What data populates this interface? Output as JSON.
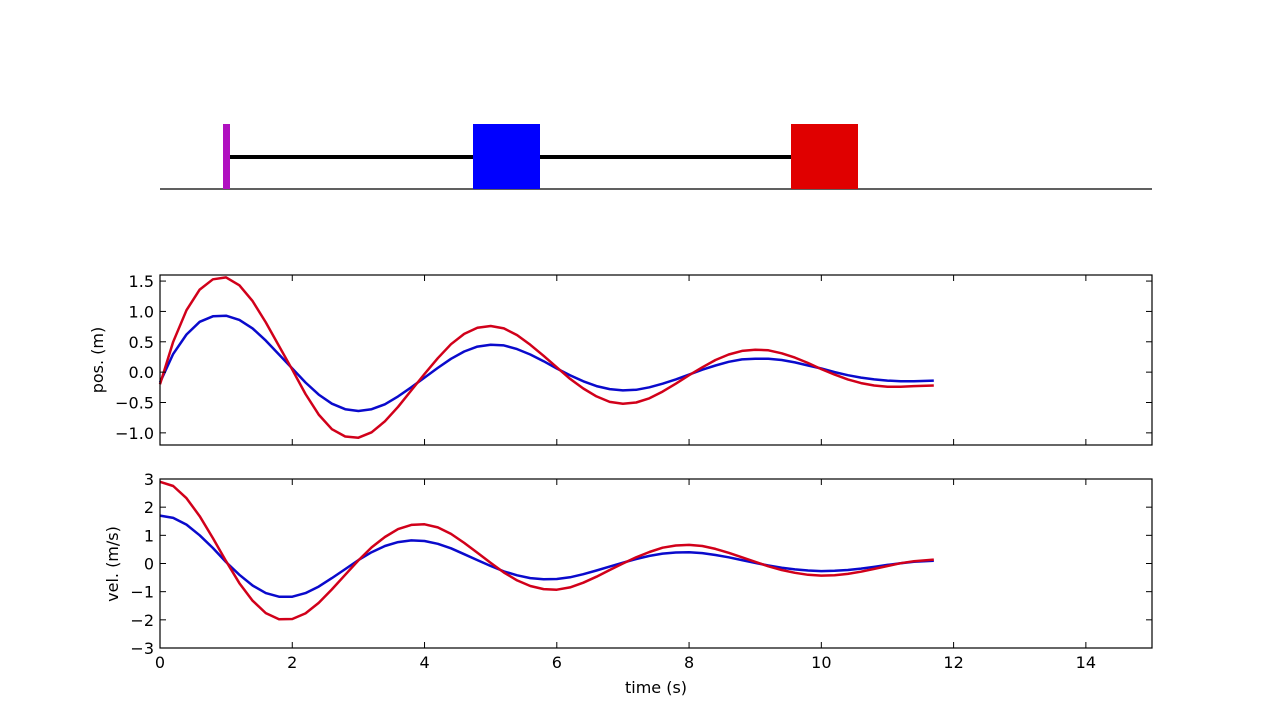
{
  "colors": {
    "wall": "#b010c0",
    "mass1": "#0000ff",
    "mass2": "#e00000",
    "spring": "#000000",
    "series_blue": "#0a0acc",
    "series_red": "#d1001a"
  },
  "chart_data": [
    {
      "type": "line",
      "title": "",
      "xlabel": "",
      "ylabel": "pos. (m)",
      "xlim": [
        0,
        15
      ],
      "ylim": [
        -1.2,
        1.6
      ],
      "xticks": [
        0,
        2,
        4,
        6,
        8,
        10,
        12,
        14
      ],
      "yticks": [
        -1.0,
        -0.5,
        0.0,
        0.5,
        1.0,
        1.5
      ],
      "ytick_labels": [
        "−1.0",
        "−0.5",
        "0.0",
        "0.5",
        "1.0",
        "1.5"
      ],
      "series": [
        {
          "color": "blue",
          "x": [
            0,
            0.2,
            0.4,
            0.6,
            0.8,
            1.0,
            1.2,
            1.4,
            1.6,
            1.8,
            2.0,
            2.2,
            2.4,
            2.6,
            2.8,
            3.0,
            3.2,
            3.4,
            3.6,
            3.8,
            4.0,
            4.2,
            4.4,
            4.6,
            4.8,
            5.0,
            5.2,
            5.4,
            5.6,
            5.8,
            6.0,
            6.2,
            6.4,
            6.6,
            6.8,
            7.0,
            7.2,
            7.4,
            7.6,
            7.8,
            8.0,
            8.2,
            8.4,
            8.6,
            8.8,
            9.0,
            9.2,
            9.4,
            9.6,
            9.8,
            10.0,
            10.2,
            10.4,
            10.6,
            10.8,
            11.0,
            11.2,
            11.4,
            11.7
          ],
          "y": [
            -0.17,
            0.3,
            0.62,
            0.83,
            0.92,
            0.93,
            0.86,
            0.72,
            0.52,
            0.29,
            0.06,
            -0.17,
            -0.37,
            -0.52,
            -0.61,
            -0.64,
            -0.61,
            -0.53,
            -0.4,
            -0.25,
            -0.09,
            0.07,
            0.22,
            0.34,
            0.42,
            0.45,
            0.44,
            0.38,
            0.29,
            0.18,
            0.06,
            -0.05,
            -0.15,
            -0.23,
            -0.28,
            -0.3,
            -0.29,
            -0.25,
            -0.19,
            -0.12,
            -0.04,
            0.04,
            0.11,
            0.17,
            0.21,
            0.22,
            0.22,
            0.2,
            0.16,
            0.11,
            0.06,
            0.0,
            -0.05,
            -0.09,
            -0.12,
            -0.14,
            -0.15,
            -0.15,
            -0.14
          ]
        },
        {
          "color": "red",
          "x": [
            0,
            0.2,
            0.4,
            0.6,
            0.8,
            1.0,
            1.2,
            1.4,
            1.6,
            1.8,
            2.0,
            2.2,
            2.4,
            2.6,
            2.8,
            3.0,
            3.2,
            3.4,
            3.6,
            3.8,
            4.0,
            4.2,
            4.4,
            4.6,
            4.8,
            5.0,
            5.2,
            5.4,
            5.6,
            5.8,
            6.0,
            6.2,
            6.4,
            6.6,
            6.8,
            7.0,
            7.2,
            7.4,
            7.6,
            7.8,
            8.0,
            8.2,
            8.4,
            8.6,
            8.8,
            9.0,
            9.2,
            9.4,
            9.6,
            9.8,
            10.0,
            10.2,
            10.4,
            10.6,
            10.8,
            11.0,
            11.2,
            11.4,
            11.7
          ],
          "y": [
            -0.2,
            0.5,
            1.02,
            1.36,
            1.53,
            1.56,
            1.43,
            1.17,
            0.82,
            0.43,
            0.04,
            -0.36,
            -0.7,
            -0.94,
            -1.06,
            -1.08,
            -0.99,
            -0.81,
            -0.57,
            -0.3,
            -0.03,
            0.23,
            0.46,
            0.63,
            0.73,
            0.76,
            0.72,
            0.61,
            0.45,
            0.27,
            0.08,
            -0.11,
            -0.27,
            -0.4,
            -0.49,
            -0.52,
            -0.5,
            -0.43,
            -0.32,
            -0.19,
            -0.05,
            0.08,
            0.2,
            0.29,
            0.35,
            0.37,
            0.36,
            0.31,
            0.24,
            0.15,
            0.05,
            -0.04,
            -0.12,
            -0.18,
            -0.22,
            -0.24,
            -0.24,
            -0.23,
            -0.22
          ]
        }
      ]
    },
    {
      "type": "line",
      "title": "",
      "xlabel": "time (s)",
      "ylabel": "vel. (m/s)",
      "xlim": [
        0,
        15
      ],
      "ylim": [
        -3,
        3
      ],
      "xticks": [
        0,
        2,
        4,
        6,
        8,
        10,
        12,
        14
      ],
      "yticks": [
        -3,
        -2,
        -1,
        0,
        1,
        2,
        3
      ],
      "ytick_labels": [
        "−3",
        "−2",
        "−1",
        "0",
        "1",
        "2",
        "3"
      ],
      "series": [
        {
          "color": "blue",
          "x": [
            0,
            0.2,
            0.4,
            0.6,
            0.8,
            1.0,
            1.2,
            1.4,
            1.6,
            1.8,
            2.0,
            2.2,
            2.4,
            2.6,
            2.8,
            3.0,
            3.2,
            3.4,
            3.6,
            3.8,
            4.0,
            4.2,
            4.4,
            4.6,
            4.8,
            5.0,
            5.2,
            5.4,
            5.6,
            5.8,
            6.0,
            6.2,
            6.4,
            6.6,
            6.8,
            7.0,
            7.2,
            7.4,
            7.6,
            7.8,
            8.0,
            8.2,
            8.4,
            8.6,
            8.8,
            9.0,
            9.2,
            9.4,
            9.6,
            9.8,
            10.0,
            10.2,
            10.4,
            10.6,
            10.8,
            11.0,
            11.2,
            11.4,
            11.7
          ],
          "y": [
            1.7,
            1.62,
            1.38,
            1.0,
            0.55,
            0.05,
            -0.4,
            -0.78,
            -1.05,
            -1.18,
            -1.18,
            -1.05,
            -0.82,
            -0.52,
            -0.2,
            0.12,
            0.4,
            0.62,
            0.76,
            0.82,
            0.8,
            0.7,
            0.54,
            0.33,
            0.12,
            -0.09,
            -0.28,
            -0.42,
            -0.52,
            -0.56,
            -0.55,
            -0.49,
            -0.38,
            -0.25,
            -0.11,
            0.03,
            0.16,
            0.27,
            0.35,
            0.39,
            0.4,
            0.37,
            0.3,
            0.22,
            0.12,
            0.02,
            -0.07,
            -0.15,
            -0.21,
            -0.25,
            -0.27,
            -0.26,
            -0.23,
            -0.18,
            -0.12,
            -0.05,
            0.01,
            0.06,
            0.1
          ]
        },
        {
          "color": "red",
          "x": [
            0,
            0.2,
            0.4,
            0.6,
            0.8,
            1.0,
            1.2,
            1.4,
            1.6,
            1.8,
            2.0,
            2.2,
            2.4,
            2.6,
            2.8,
            3.0,
            3.2,
            3.4,
            3.6,
            3.8,
            4.0,
            4.2,
            4.4,
            4.6,
            4.8,
            5.0,
            5.2,
            5.4,
            5.6,
            5.8,
            6.0,
            6.2,
            6.4,
            6.6,
            6.8,
            7.0,
            7.2,
            7.4,
            7.6,
            7.8,
            8.0,
            8.2,
            8.4,
            8.6,
            8.8,
            9.0,
            9.2,
            9.4,
            9.6,
            9.8,
            10.0,
            10.2,
            10.4,
            10.6,
            10.8,
            11.0,
            11.2,
            11.4,
            11.7
          ],
          "y": [
            2.9,
            2.75,
            2.32,
            1.68,
            0.9,
            0.08,
            -0.7,
            -1.32,
            -1.76,
            -1.98,
            -1.97,
            -1.77,
            -1.4,
            -0.92,
            -0.4,
            0.11,
            0.57,
            0.94,
            1.22,
            1.37,
            1.39,
            1.28,
            1.05,
            0.73,
            0.38,
            0.02,
            -0.32,
            -0.6,
            -0.8,
            -0.91,
            -0.93,
            -0.85,
            -0.68,
            -0.47,
            -0.23,
            0.0,
            0.22,
            0.41,
            0.56,
            0.64,
            0.66,
            0.62,
            0.52,
            0.38,
            0.22,
            0.06,
            -0.1,
            -0.23,
            -0.33,
            -0.4,
            -0.43,
            -0.42,
            -0.37,
            -0.29,
            -0.19,
            -0.09,
            0.01,
            0.08,
            0.14
          ]
        }
      ]
    }
  ]
}
